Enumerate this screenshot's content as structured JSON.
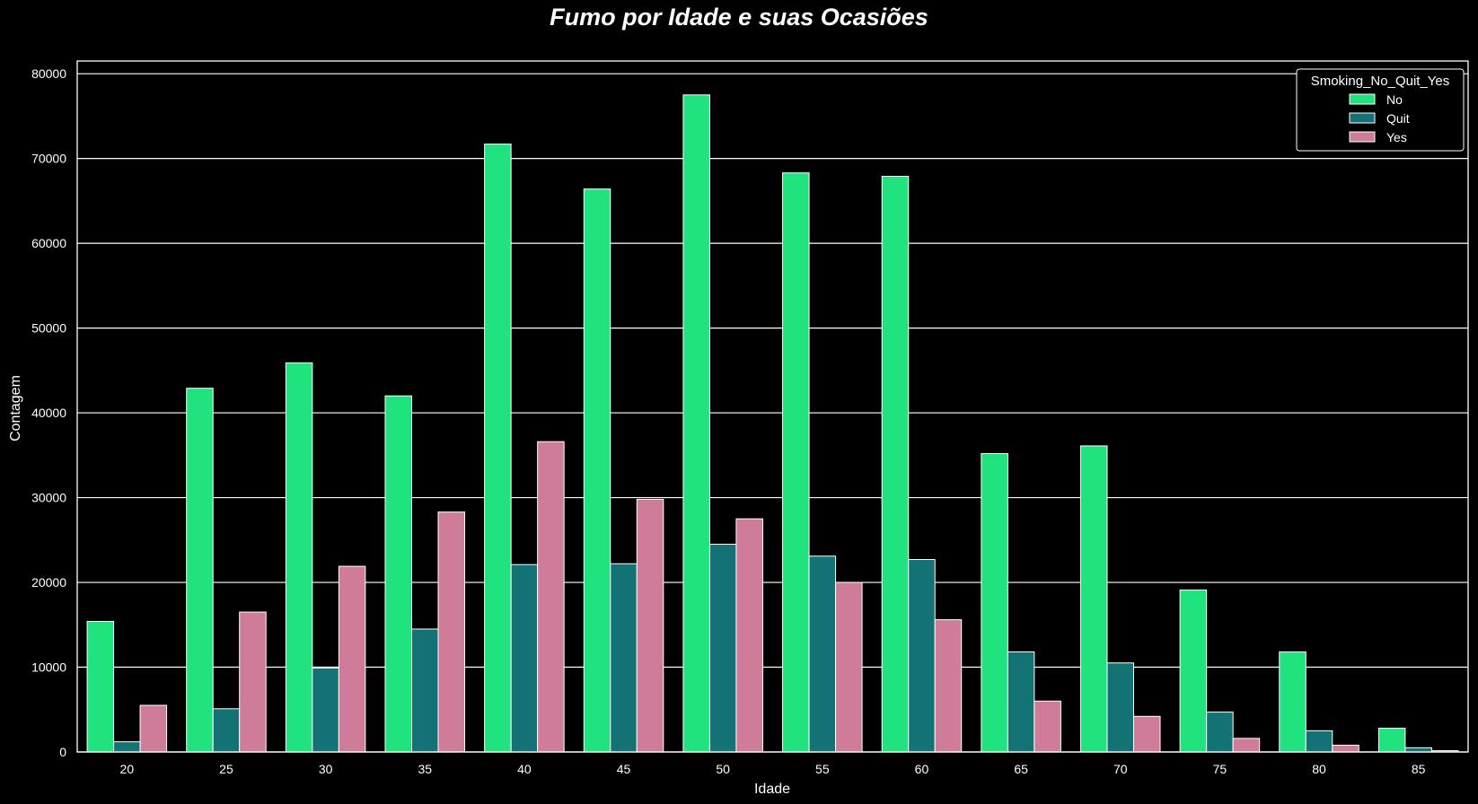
{
  "chart_data": {
    "type": "bar",
    "title": "Fumo por Idade e suas Ocasiões",
    "xlabel": "Idade",
    "ylabel": "Contagem",
    "categories": [
      "20",
      "25",
      "30",
      "35",
      "40",
      "45",
      "50",
      "55",
      "60",
      "65",
      "70",
      "75",
      "80",
      "85"
    ],
    "series": [
      {
        "name": "No",
        "color": "#20e37e",
        "values": [
          15400,
          42900,
          45900,
          42000,
          71700,
          66400,
          77500,
          68300,
          67900,
          35200,
          36100,
          19100,
          11800,
          2800
        ]
      },
      {
        "name": "Quit",
        "color": "#137374",
        "values": [
          1200,
          5100,
          9900,
          14500,
          22100,
          22200,
          24500,
          23100,
          22700,
          11800,
          10500,
          4700,
          2500,
          500
        ]
      },
      {
        "name": "Yes",
        "color": "#cf7c9a",
        "values": [
          5500,
          16500,
          21900,
          28300,
          36600,
          29800,
          27500,
          20000,
          15600,
          6000,
          4200,
          1600,
          800,
          150
        ]
      }
    ],
    "yticks": [
      0,
      10000,
      20000,
      30000,
      40000,
      50000,
      60000,
      70000,
      80000
    ],
    "ylim": [
      0,
      81500
    ],
    "grid": "horizontal",
    "legend": {
      "title": "Smoking_No_Quit_Yes",
      "position": "top-right"
    },
    "background": "#000000"
  }
}
